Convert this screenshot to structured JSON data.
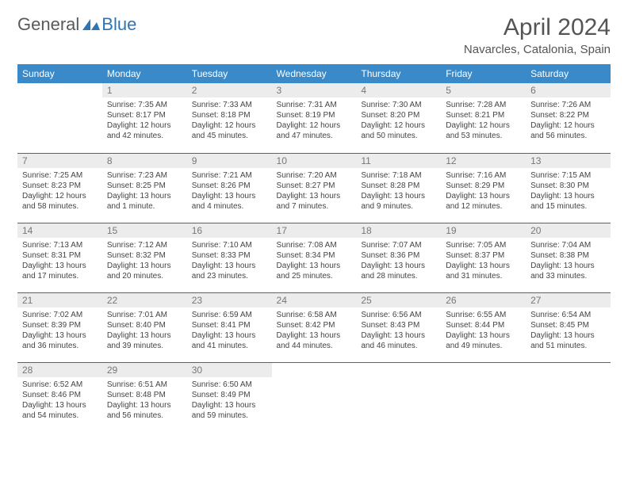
{
  "logo": {
    "general": "General",
    "blue": "Blue"
  },
  "title": "April 2024",
  "location": "Navarcles, Catalonia, Spain",
  "headers": [
    "Sunday",
    "Monday",
    "Tuesday",
    "Wednesday",
    "Thursday",
    "Friday",
    "Saturday"
  ],
  "colors": {
    "header_bg": "#3a8ac9",
    "header_fg": "#ffffff",
    "rule": "#3a6a9a",
    "daynum_bg": "#ececec",
    "logo_blue": "#2e75b6"
  },
  "weeks": [
    [
      null,
      {
        "n": "1",
        "sr": "Sunrise: 7:35 AM",
        "ss": "Sunset: 8:17 PM",
        "d1": "Daylight: 12 hours",
        "d2": "and 42 minutes."
      },
      {
        "n": "2",
        "sr": "Sunrise: 7:33 AM",
        "ss": "Sunset: 8:18 PM",
        "d1": "Daylight: 12 hours",
        "d2": "and 45 minutes."
      },
      {
        "n": "3",
        "sr": "Sunrise: 7:31 AM",
        "ss": "Sunset: 8:19 PM",
        "d1": "Daylight: 12 hours",
        "d2": "and 47 minutes."
      },
      {
        "n": "4",
        "sr": "Sunrise: 7:30 AM",
        "ss": "Sunset: 8:20 PM",
        "d1": "Daylight: 12 hours",
        "d2": "and 50 minutes."
      },
      {
        "n": "5",
        "sr": "Sunrise: 7:28 AM",
        "ss": "Sunset: 8:21 PM",
        "d1": "Daylight: 12 hours",
        "d2": "and 53 minutes."
      },
      {
        "n": "6",
        "sr": "Sunrise: 7:26 AM",
        "ss": "Sunset: 8:22 PM",
        "d1": "Daylight: 12 hours",
        "d2": "and 56 minutes."
      }
    ],
    [
      {
        "n": "7",
        "sr": "Sunrise: 7:25 AM",
        "ss": "Sunset: 8:23 PM",
        "d1": "Daylight: 12 hours",
        "d2": "and 58 minutes."
      },
      {
        "n": "8",
        "sr": "Sunrise: 7:23 AM",
        "ss": "Sunset: 8:25 PM",
        "d1": "Daylight: 13 hours",
        "d2": "and 1 minute."
      },
      {
        "n": "9",
        "sr": "Sunrise: 7:21 AM",
        "ss": "Sunset: 8:26 PM",
        "d1": "Daylight: 13 hours",
        "d2": "and 4 minutes."
      },
      {
        "n": "10",
        "sr": "Sunrise: 7:20 AM",
        "ss": "Sunset: 8:27 PM",
        "d1": "Daylight: 13 hours",
        "d2": "and 7 minutes."
      },
      {
        "n": "11",
        "sr": "Sunrise: 7:18 AM",
        "ss": "Sunset: 8:28 PM",
        "d1": "Daylight: 13 hours",
        "d2": "and 9 minutes."
      },
      {
        "n": "12",
        "sr": "Sunrise: 7:16 AM",
        "ss": "Sunset: 8:29 PM",
        "d1": "Daylight: 13 hours",
        "d2": "and 12 minutes."
      },
      {
        "n": "13",
        "sr": "Sunrise: 7:15 AM",
        "ss": "Sunset: 8:30 PM",
        "d1": "Daylight: 13 hours",
        "d2": "and 15 minutes."
      }
    ],
    [
      {
        "n": "14",
        "sr": "Sunrise: 7:13 AM",
        "ss": "Sunset: 8:31 PM",
        "d1": "Daylight: 13 hours",
        "d2": "and 17 minutes."
      },
      {
        "n": "15",
        "sr": "Sunrise: 7:12 AM",
        "ss": "Sunset: 8:32 PM",
        "d1": "Daylight: 13 hours",
        "d2": "and 20 minutes."
      },
      {
        "n": "16",
        "sr": "Sunrise: 7:10 AM",
        "ss": "Sunset: 8:33 PM",
        "d1": "Daylight: 13 hours",
        "d2": "and 23 minutes."
      },
      {
        "n": "17",
        "sr": "Sunrise: 7:08 AM",
        "ss": "Sunset: 8:34 PM",
        "d1": "Daylight: 13 hours",
        "d2": "and 25 minutes."
      },
      {
        "n": "18",
        "sr": "Sunrise: 7:07 AM",
        "ss": "Sunset: 8:36 PM",
        "d1": "Daylight: 13 hours",
        "d2": "and 28 minutes."
      },
      {
        "n": "19",
        "sr": "Sunrise: 7:05 AM",
        "ss": "Sunset: 8:37 PM",
        "d1": "Daylight: 13 hours",
        "d2": "and 31 minutes."
      },
      {
        "n": "20",
        "sr": "Sunrise: 7:04 AM",
        "ss": "Sunset: 8:38 PM",
        "d1": "Daylight: 13 hours",
        "d2": "and 33 minutes."
      }
    ],
    [
      {
        "n": "21",
        "sr": "Sunrise: 7:02 AM",
        "ss": "Sunset: 8:39 PM",
        "d1": "Daylight: 13 hours",
        "d2": "and 36 minutes."
      },
      {
        "n": "22",
        "sr": "Sunrise: 7:01 AM",
        "ss": "Sunset: 8:40 PM",
        "d1": "Daylight: 13 hours",
        "d2": "and 39 minutes."
      },
      {
        "n": "23",
        "sr": "Sunrise: 6:59 AM",
        "ss": "Sunset: 8:41 PM",
        "d1": "Daylight: 13 hours",
        "d2": "and 41 minutes."
      },
      {
        "n": "24",
        "sr": "Sunrise: 6:58 AM",
        "ss": "Sunset: 8:42 PM",
        "d1": "Daylight: 13 hours",
        "d2": "and 44 minutes."
      },
      {
        "n": "25",
        "sr": "Sunrise: 6:56 AM",
        "ss": "Sunset: 8:43 PM",
        "d1": "Daylight: 13 hours",
        "d2": "and 46 minutes."
      },
      {
        "n": "26",
        "sr": "Sunrise: 6:55 AM",
        "ss": "Sunset: 8:44 PM",
        "d1": "Daylight: 13 hours",
        "d2": "and 49 minutes."
      },
      {
        "n": "27",
        "sr": "Sunrise: 6:54 AM",
        "ss": "Sunset: 8:45 PM",
        "d1": "Daylight: 13 hours",
        "d2": "and 51 minutes."
      }
    ],
    [
      {
        "n": "28",
        "sr": "Sunrise: 6:52 AM",
        "ss": "Sunset: 8:46 PM",
        "d1": "Daylight: 13 hours",
        "d2": "and 54 minutes."
      },
      {
        "n": "29",
        "sr": "Sunrise: 6:51 AM",
        "ss": "Sunset: 8:48 PM",
        "d1": "Daylight: 13 hours",
        "d2": "and 56 minutes."
      },
      {
        "n": "30",
        "sr": "Sunrise: 6:50 AM",
        "ss": "Sunset: 8:49 PM",
        "d1": "Daylight: 13 hours",
        "d2": "and 59 minutes."
      },
      null,
      null,
      null,
      null
    ]
  ]
}
